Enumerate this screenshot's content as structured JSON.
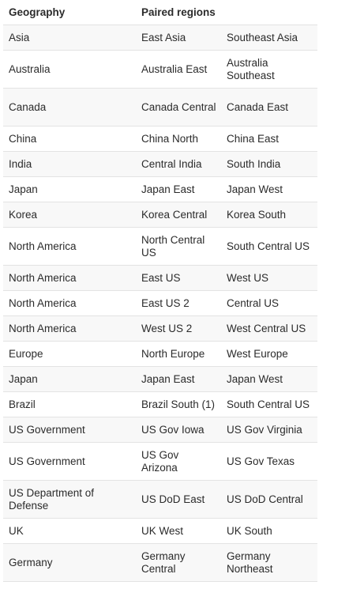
{
  "table": {
    "headers": [
      "Geography",
      "Paired regions",
      ""
    ],
    "rows": [
      [
        "Asia",
        "East Asia",
        "Southeast Asia"
      ],
      [
        "Australia",
        "Australia East",
        "Australia Southeast"
      ],
      [
        "Canada",
        "Canada Central",
        "Canada East"
      ],
      [
        "China",
        "China North",
        "China East"
      ],
      [
        "India",
        "Central India",
        "South India"
      ],
      [
        "Japan",
        "Japan East",
        "Japan West"
      ],
      [
        "Korea",
        "Korea Central",
        "Korea South"
      ],
      [
        "North America",
        "North Central US",
        "South Central US"
      ],
      [
        "North America",
        "East US",
        "West US"
      ],
      [
        "North America",
        "East US 2",
        "Central US"
      ],
      [
        "North America",
        "West US 2",
        "West Central US"
      ],
      [
        "Europe",
        "North Europe",
        "West Europe"
      ],
      [
        "Japan",
        "Japan East",
        "Japan West"
      ],
      [
        "Brazil",
        "Brazil South (1)",
        "South Central US"
      ],
      [
        "US Government",
        "US Gov Iowa",
        "US Gov Virginia"
      ],
      [
        "US Government",
        "US Gov Arizona",
        "US Gov Texas"
      ],
      [
        "US Department of Defense",
        "US DoD East",
        "US DoD Central"
      ],
      [
        "UK",
        "UK West",
        "UK South"
      ],
      [
        "Germany",
        "Germany Central",
        "Germany Northeast"
      ]
    ]
  }
}
